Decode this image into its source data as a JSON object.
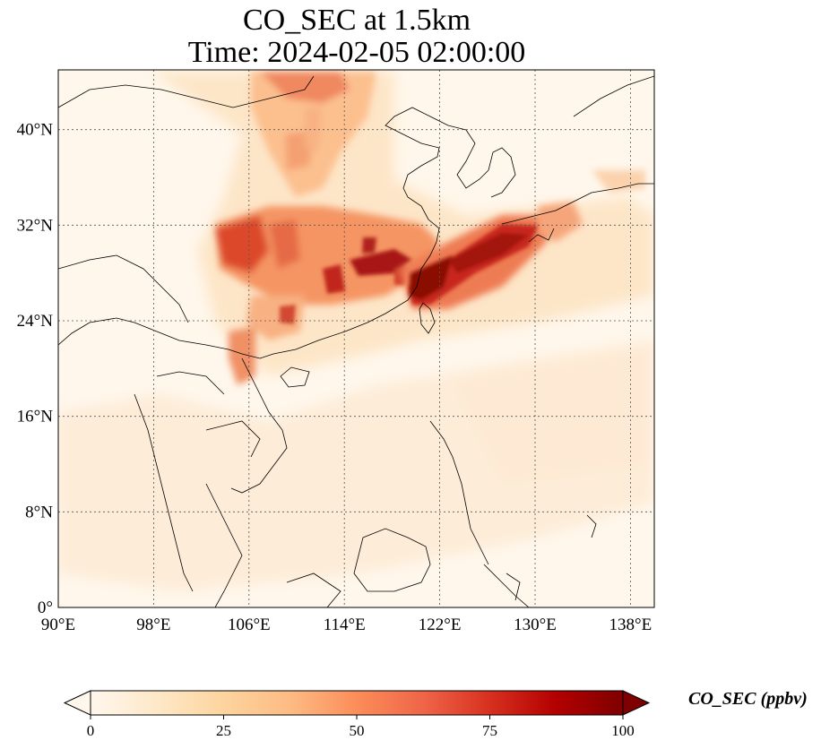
{
  "title_line1": "CO_SEC at 1.5km",
  "title_line2": "Time: 2024-02-05 02:00:00",
  "colorbar": {
    "label": "CO_SEC (ppbv)",
    "colormap": "OrRd",
    "ticks": [
      "0",
      "25",
      "50",
      "75",
      "100"
    ],
    "range": [
      0,
      100
    ],
    "extend": "both",
    "colors": [
      "#fff7ec",
      "#fee8c8",
      "#fdd49e",
      "#fdbb84",
      "#fc8d59",
      "#ef6548",
      "#d7301f",
      "#b30000",
      "#7f0000"
    ]
  },
  "map": {
    "lon_range": [
      90,
      140
    ],
    "lat_range": [
      0,
      45
    ],
    "gridlines": "dotted",
    "lon_ticks": [
      "90°E",
      "98°E",
      "106°E",
      "114°E",
      "122°E",
      "130°E",
      "138°E"
    ],
    "lat_ticks": [
      "0°",
      "8°N",
      "16°N",
      "24°N",
      "32°N",
      "40°N"
    ],
    "lon_tick_values": [
      90,
      98,
      106,
      114,
      122,
      130,
      138
    ],
    "lat_tick_values": [
      0,
      8,
      16,
      24,
      32,
      40
    ]
  }
}
